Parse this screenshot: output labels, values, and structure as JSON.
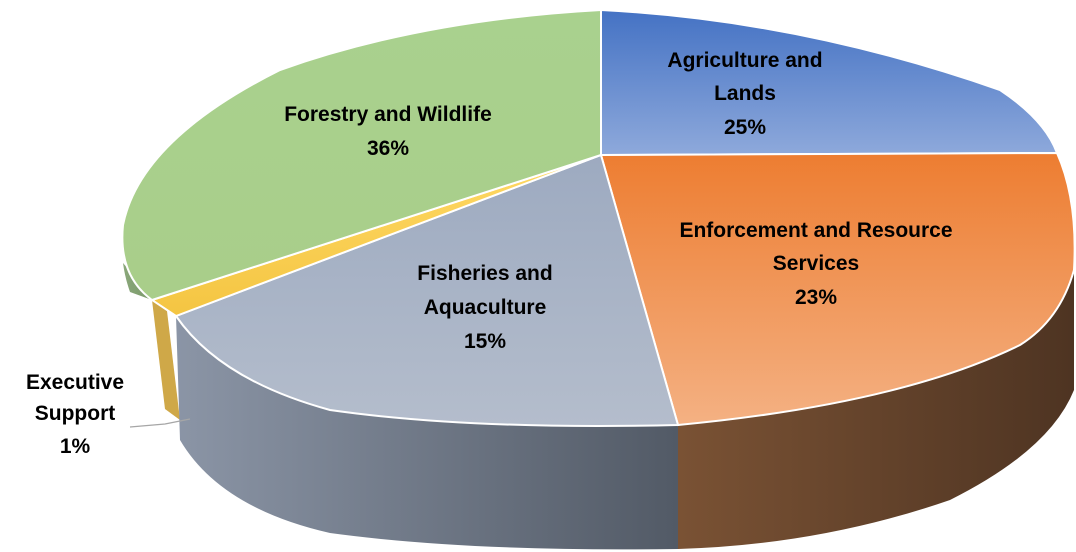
{
  "chart_data": {
    "type": "pie",
    "title": "",
    "slices": [
      {
        "name": "Agriculture and Lands",
        "label_lines": [
          "Agriculture and",
          "Lands"
        ],
        "pct_label": "25%",
        "value": 25,
        "color": "#5b7fcd"
      },
      {
        "name": "Enforcement and Resource Services",
        "label_lines": [
          "Enforcement and Resource",
          "Services"
        ],
        "pct_label": "23%",
        "value": 23,
        "color": "#ef8a45"
      },
      {
        "name": "Fisheries and Aquaculture",
        "label_lines": [
          "Fisheries and",
          "Aquaculture"
        ],
        "pct_label": "15%",
        "value": 15,
        "color": "#a8b3c5"
      },
      {
        "name": "Executive Support",
        "label_lines": [
          "Executive",
          "Support"
        ],
        "pct_label": "1%",
        "value": 1,
        "color": "#f6cf55"
      },
      {
        "name": "Forestry and Wildlife",
        "label_lines": [
          "Forestry and Wildlife"
        ],
        "pct_label": "36%",
        "value": 36,
        "color": "#a9ce8a"
      }
    ],
    "style": "3d",
    "legend": "none"
  }
}
